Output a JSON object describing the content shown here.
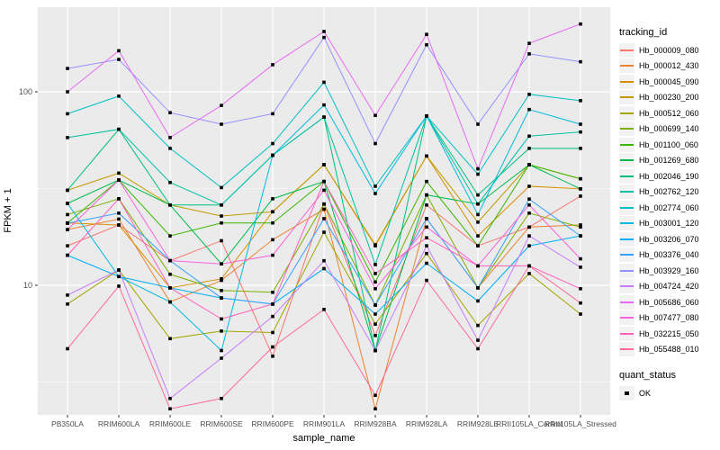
{
  "chart_data": {
    "type": "line",
    "title": "",
    "xlabel": "sample_name",
    "ylabel": "FPKM + 1",
    "y_scale": "log10",
    "y_ticks": [
      10,
      100
    ],
    "y_minor_ticks": [
      3.1623,
      31.623
    ],
    "ylim": [
      2.1,
      275
    ],
    "grid": true,
    "panel_bg": "#EBEBEB",
    "grid_color": "#FFFFFF",
    "tick_label_color": "#4D4D4D",
    "point_shape": "square",
    "point_color": "#000000",
    "categories": [
      "PB350LA",
      "RRIM600LA",
      "RRIM600LE",
      "RRIM600SE",
      "RRIM600PE",
      "RRIM901LA",
      "RRIM928BA",
      "RRIM928LA",
      "RRIM928LE",
      "RRII105LA_Control",
      "RRII105LA_Stressed"
    ],
    "series": [
      {
        "name": "Hb_000009_080",
        "color": "#F8766D",
        "values": [
          16,
          20.5,
          13.4,
          17,
          4.3,
          26.3,
          5.5,
          26,
          16,
          20,
          28.9
        ]
      },
      {
        "name": "Hb_000012_430",
        "color": "#EA8331",
        "values": [
          19.4,
          22,
          8.2,
          10.6,
          17.2,
          24.7,
          2.3,
          22.1,
          9.7,
          20,
          20.5
        ]
      },
      {
        "name": "Hb_000045_090",
        "color": "#D89000",
        "values": [
          21,
          20.5,
          9.7,
          10.8,
          24,
          42,
          16,
          46.6,
          18,
          32.5,
          31.5
        ]
      },
      {
        "name": "Hb_000230_200",
        "color": "#C09B00",
        "values": [
          31,
          38,
          26,
          22.8,
          24,
          42,
          16.2,
          46.6,
          21.2,
          42,
          35.5
        ]
      },
      {
        "name": "Hb_000512_060",
        "color": "#A3A500",
        "values": [
          8,
          12,
          5.3,
          5.8,
          5.7,
          18.8,
          6.3,
          14.6,
          6.2,
          11.5,
          7.1
        ]
      },
      {
        "name": "Hb_000699_140",
        "color": "#7CAE00",
        "values": [
          23.2,
          28,
          11.4,
          9.4,
          9.2,
          26.3,
          7.9,
          29.3,
          9.7,
          23.6,
          20
        ]
      },
      {
        "name": "Hb_001100_060",
        "color": "#39B600",
        "values": [
          21,
          35,
          18,
          21,
          21,
          34.4,
          10.4,
          34.4,
          16,
          42,
          35.5
        ]
      },
      {
        "name": "Hb_001269_680",
        "color": "#00BB4E",
        "values": [
          26.5,
          35,
          26,
          12.9,
          28,
          34.4,
          4.6,
          29.3,
          26.3,
          42,
          31.5
        ]
      },
      {
        "name": "Hb_002046_190",
        "color": "#00BF7D",
        "values": [
          31,
          64,
          26,
          26,
          47,
          74,
          4.6,
          75,
          29.3,
          51,
          51
        ]
      },
      {
        "name": "Hb_002762_120",
        "color": "#00C1A3",
        "values": [
          58,
          64,
          34,
          26,
          47,
          74,
          12.8,
          75,
          26.3,
          59,
          62
        ]
      },
      {
        "name": "Hb_002774_060",
        "color": "#00BFC4",
        "values": [
          77,
          95,
          51,
          32,
          54,
          112,
          32.5,
          75,
          37.5,
          97,
          90
        ]
      },
      {
        "name": "Hb_003001_120",
        "color": "#00BAE0",
        "values": [
          26.5,
          11.1,
          8.2,
          4.6,
          47,
          85.5,
          29.8,
          75,
          23.2,
          81,
          68
        ]
      },
      {
        "name": "Hb_003206_070",
        "color": "#00B0F6",
        "values": [
          14.3,
          11.1,
          9.7,
          8.6,
          8,
          12.2,
          7.1,
          13,
          8.3,
          16,
          18
        ]
      },
      {
        "name": "Hb_003376_040",
        "color": "#35A2FF",
        "values": [
          20.9,
          23.6,
          13.4,
          8.6,
          8,
          22.1,
          7.9,
          22.1,
          9.7,
          27.9,
          18
        ]
      },
      {
        "name": "Hb_003929_160",
        "color": "#9590FF",
        "values": [
          132,
          147,
          78,
          68,
          77,
          191,
          54,
          175,
          68,
          157,
          143
        ]
      },
      {
        "name": "Hb_004724_420",
        "color": "#C77CFF",
        "values": [
          8.9,
          12,
          2.6,
          4.2,
          6.9,
          13.4,
          4.6,
          16,
          5.2,
          18,
          12.4
        ]
      },
      {
        "name": "Hb_005686_060",
        "color": "#E76BF3",
        "values": [
          100,
          163,
          58,
          85,
          138,
          205,
          75.5,
          198,
          40,
          178,
          224
        ]
      },
      {
        "name": "Hb_007477_080",
        "color": "#FA62DB",
        "values": [
          19.4,
          35,
          13.4,
          12.9,
          14.3,
          31,
          9.6,
          20,
          12.6,
          26,
          13.7
        ]
      },
      {
        "name": "Hb_032215_050",
        "color": "#FF62BC",
        "values": [
          14.3,
          28,
          9.7,
          6.7,
          8,
          34.4,
          11.5,
          17.6,
          12.6,
          12.6,
          9.6
        ]
      },
      {
        "name": "Hb_055488_010",
        "color": "#FF6A98",
        "values": [
          4.7,
          9.9,
          2.3,
          2.6,
          4.8,
          7.5,
          2.7,
          10.6,
          4.7,
          12.6,
          8.1
        ]
      }
    ],
    "legend": {
      "position": "right",
      "tracking_title": "tracking_id",
      "quant_title": "quant_status",
      "quant_items": [
        {
          "label": "OK",
          "symbol": "black-square"
        }
      ]
    }
  }
}
